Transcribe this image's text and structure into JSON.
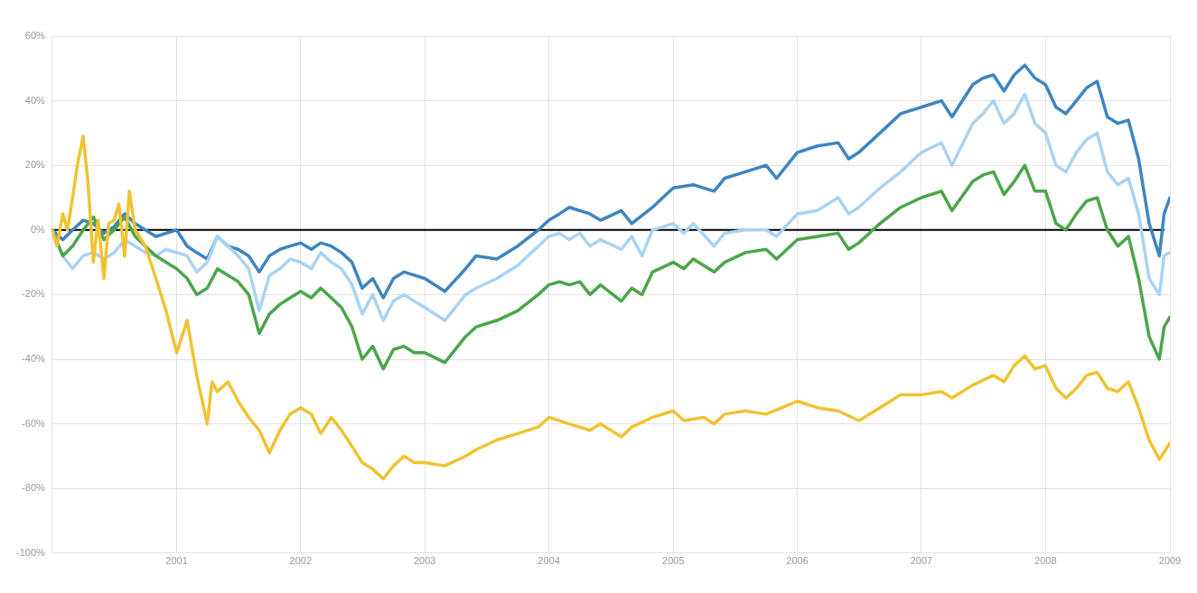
{
  "chart_data": {
    "type": "line",
    "xlim": [
      "2000-01",
      "2009-01"
    ],
    "xticks": [
      "2001",
      "2002",
      "2003",
      "2004",
      "2005",
      "2006",
      "2007",
      "2008",
      "2009"
    ],
    "ylim": [
      -100,
      60
    ],
    "yticks": [
      {
        "value": -100,
        "label": "-100%"
      },
      {
        "value": -80,
        "label": "-80%"
      },
      {
        "value": -60,
        "label": "-60%"
      },
      {
        "value": -40,
        "label": "-40%"
      },
      {
        "value": -20,
        "label": "-20%"
      },
      {
        "value": 0,
        "label": "0%"
      },
      {
        "value": 20,
        "label": "20%"
      },
      {
        "value": 40,
        "label": "40%"
      },
      {
        "value": 60,
        "label": "60%"
      }
    ],
    "grid": true,
    "legend": false,
    "marker": "none",
    "line_style": "solid",
    "ref_lines": [
      {
        "axis": "y",
        "value": 0,
        "color": "#000000"
      }
    ],
    "series": [
      {
        "color": "#f1c232",
        "x": [
          "2000-01",
          "2000-01-15",
          "2000-02",
          "2000-02-15",
          "2000-03",
          "2000-03-15",
          "2000-04",
          "2000-04-15",
          "2000-05",
          "2000-05-15",
          "2000-06",
          "2000-06-15",
          "2000-07",
          "2000-07-15",
          "2000-08",
          "2000-08-15",
          "2000-09",
          "2000-10",
          "2000-11",
          "2000-12",
          "2001-01",
          "2001-02",
          "2001-03",
          "2001-04",
          "2001-04-15",
          "2001-05",
          "2001-06",
          "2001-07",
          "2001-08",
          "2001-09",
          "2001-10",
          "2001-11",
          "2001-12",
          "2002-01",
          "2002-02",
          "2002-03",
          "2002-04",
          "2002-05",
          "2002-06",
          "2002-07",
          "2002-08",
          "2002-09",
          "2002-10",
          "2002-11",
          "2002-12",
          "2003-01",
          "2003-03",
          "2003-05",
          "2003-06",
          "2003-08",
          "2003-10",
          "2003-12",
          "2004-01",
          "2004-03",
          "2004-05",
          "2004-06",
          "2004-08",
          "2004-09",
          "2004-11",
          "2005-01",
          "2005-02",
          "2005-04",
          "2005-05",
          "2005-06",
          "2005-08",
          "2005-10",
          "2006-01",
          "2006-03",
          "2006-05",
          "2006-07",
          "2006-09",
          "2006-11",
          "2007-01",
          "2007-03",
          "2007-04",
          "2007-06",
          "2007-08",
          "2007-09",
          "2007-10",
          "2007-11",
          "2007-12",
          "2008-01",
          "2008-02",
          "2008-03",
          "2008-04",
          "2008-05",
          "2008-06",
          "2008-07",
          "2008-08",
          "2008-09",
          "2008-10",
          "2008-11",
          "2008-12",
          "2009-01"
        ],
        "values": [
          0,
          -5,
          5,
          0,
          10,
          20,
          29,
          15,
          -10,
          3,
          -15,
          2,
          3,
          8,
          -8,
          12,
          0,
          -5,
          -15,
          -25,
          -38,
          -28,
          -45,
          -60,
          -47,
          -50,
          -47,
          -53,
          -58,
          -62,
          -69,
          -62,
          -57,
          -55,
          -57,
          -63,
          -58,
          -62,
          -67,
          -72,
          -74,
          -77,
          -73,
          -70,
          -72,
          -72,
          -73,
          -70,
          -68,
          -65,
          -63,
          -61,
          -58,
          -60,
          -62,
          -60,
          -64,
          -61,
          -58,
          -56,
          -59,
          -58,
          -60,
          -57,
          -56,
          -57,
          -53,
          -55,
          -56,
          -59,
          -55,
          -51,
          -51,
          -50,
          -52,
          -48,
          -45,
          -47,
          -42,
          -39,
          -43,
          -42,
          -49,
          -52,
          -49,
          -45,
          -44,
          -49,
          -50,
          -47,
          -55,
          -65,
          -71,
          -66
        ]
      },
      {
        "color": "#4aa64a",
        "x": [
          "2000-01",
          "2000-02",
          "2000-03",
          "2000-04",
          "2000-05",
          "2000-06",
          "2000-07",
          "2000-08",
          "2000-09",
          "2000-10",
          "2000-11",
          "2000-12",
          "2001-01",
          "2001-02",
          "2001-03",
          "2001-04",
          "2001-05",
          "2001-06",
          "2001-07",
          "2001-08",
          "2001-09",
          "2001-10",
          "2001-11",
          "2001-12",
          "2002-01",
          "2002-02",
          "2002-03",
          "2002-04",
          "2002-05",
          "2002-06",
          "2002-07",
          "2002-08",
          "2002-09",
          "2002-10",
          "2002-11",
          "2002-12",
          "2003-01",
          "2003-03",
          "2003-05",
          "2003-06",
          "2003-08",
          "2003-10",
          "2003-12",
          "2004-01",
          "2004-02",
          "2004-03",
          "2004-04",
          "2004-05",
          "2004-06",
          "2004-08",
          "2004-09",
          "2004-10",
          "2004-11",
          "2005-01",
          "2005-02",
          "2005-03",
          "2005-05",
          "2005-06",
          "2005-08",
          "2005-10",
          "2005-11",
          "2006-01",
          "2006-03",
          "2006-05",
          "2006-06",
          "2006-07",
          "2006-09",
          "2006-11",
          "2007-01",
          "2007-03",
          "2007-04",
          "2007-06",
          "2007-07",
          "2007-08",
          "2007-09",
          "2007-10",
          "2007-11",
          "2007-12",
          "2008-01",
          "2008-02",
          "2008-03",
          "2008-04",
          "2008-05",
          "2008-06",
          "2008-07",
          "2008-08",
          "2008-09",
          "2008-10",
          "2008-11",
          "2008-12",
          "2008-12-15",
          "2009-01"
        ],
        "values": [
          0,
          -8,
          -5,
          0,
          4,
          -3,
          0,
          4,
          -2,
          -5,
          -8,
          -10,
          -12,
          -15,
          -20,
          -18,
          -12,
          -14,
          -16,
          -20,
          -32,
          -26,
          -23,
          -21,
          -19,
          -21,
          -18,
          -21,
          -24,
          -30,
          -40,
          -36,
          -43,
          -37,
          -36,
          -38,
          -38,
          -41,
          -33,
          -30,
          -28,
          -25,
          -20,
          -17,
          -16,
          -17,
          -16,
          -20,
          -17,
          -22,
          -18,
          -20,
          -13,
          -10,
          -12,
          -9,
          -13,
          -10,
          -7,
          -6,
          -9,
          -3,
          -2,
          -1,
          -6,
          -4,
          2,
          7,
          10,
          12,
          6,
          15,
          17,
          18,
          11,
          15,
          20,
          12,
          12,
          2,
          0,
          5,
          9,
          10,
          0,
          -5,
          -2,
          -15,
          -33,
          -40,
          -30,
          -27
        ]
      },
      {
        "color": "#aad3f3",
        "x": [
          "2000-01",
          "2000-02",
          "2000-03",
          "2000-04",
          "2000-05",
          "2000-06",
          "2000-07",
          "2000-08",
          "2000-09",
          "2000-10",
          "2000-11",
          "2000-12",
          "2001-01",
          "2001-02",
          "2001-03",
          "2001-04",
          "2001-05",
          "2001-06",
          "2001-07",
          "2001-08",
          "2001-09",
          "2001-10",
          "2001-11",
          "2001-12",
          "2002-01",
          "2002-02",
          "2002-03",
          "2002-04",
          "2002-05",
          "2002-06",
          "2002-07",
          "2002-08",
          "2002-09",
          "2002-10",
          "2002-11",
          "2002-12",
          "2003-01",
          "2003-03",
          "2003-05",
          "2003-06",
          "2003-08",
          "2003-10",
          "2003-12",
          "2004-01",
          "2004-02",
          "2004-03",
          "2004-04",
          "2004-05",
          "2004-06",
          "2004-08",
          "2004-09",
          "2004-10",
          "2004-11",
          "2005-01",
          "2005-02",
          "2005-03",
          "2005-05",
          "2005-06",
          "2005-08",
          "2005-10",
          "2005-11",
          "2006-01",
          "2006-03",
          "2006-05",
          "2006-06",
          "2006-07",
          "2006-09",
          "2006-11",
          "2007-01",
          "2007-03",
          "2007-04",
          "2007-06",
          "2007-07",
          "2007-08",
          "2007-09",
          "2007-10",
          "2007-11",
          "2007-12",
          "2008-01",
          "2008-02",
          "2008-03",
          "2008-04",
          "2008-05",
          "2008-06",
          "2008-07",
          "2008-08",
          "2008-09",
          "2008-10",
          "2008-11",
          "2008-12",
          "2008-12-15",
          "2009-01"
        ],
        "values": [
          0,
          -8,
          -12,
          -8,
          -7,
          -9,
          -7,
          -3,
          -5,
          -7,
          -8,
          -6,
          -7,
          -8,
          -13,
          -10,
          -2,
          -5,
          -8,
          -12,
          -25,
          -14,
          -12,
          -9,
          -10,
          -12,
          -7,
          -10,
          -12,
          -17,
          -26,
          -20,
          -28,
          -22,
          -20,
          -22,
          -24,
          -28,
          -20,
          -18,
          -15,
          -11,
          -5,
          -2,
          -1,
          -3,
          -1,
          -5,
          -3,
          -6,
          -2,
          -8,
          0,
          2,
          -1,
          2,
          -5,
          -1,
          0,
          0,
          -2,
          5,
          6,
          10,
          5,
          7,
          13,
          18,
          24,
          27,
          20,
          33,
          36,
          40,
          33,
          36,
          42,
          33,
          30,
          20,
          18,
          24,
          28,
          30,
          18,
          14,
          16,
          5,
          -15,
          -20,
          -8,
          -7
        ]
      },
      {
        "color": "#3d85c0",
        "x": [
          "2000-01",
          "2000-02",
          "2000-03",
          "2000-04",
          "2000-05",
          "2000-06",
          "2000-07",
          "2000-08",
          "2000-09",
          "2000-10",
          "2000-11",
          "2000-12",
          "2001-01",
          "2001-02",
          "2001-03",
          "2001-04",
          "2001-05",
          "2001-06",
          "2001-07",
          "2001-08",
          "2001-09",
          "2001-10",
          "2001-11",
          "2001-12",
          "2002-01",
          "2002-02",
          "2002-03",
          "2002-04",
          "2002-05",
          "2002-06",
          "2002-07",
          "2002-08",
          "2002-09",
          "2002-10",
          "2002-11",
          "2002-12",
          "2003-01",
          "2003-03",
          "2003-05",
          "2003-06",
          "2003-08",
          "2003-10",
          "2003-12",
          "2004-01",
          "2004-02",
          "2004-03",
          "2004-05",
          "2004-06",
          "2004-08",
          "2004-09",
          "2004-11",
          "2004-12",
          "2005-01",
          "2005-03",
          "2005-05",
          "2005-06",
          "2005-08",
          "2005-10",
          "2005-11",
          "2006-01",
          "2006-03",
          "2006-05",
          "2006-06",
          "2006-07",
          "2006-09",
          "2006-11",
          "2007-01",
          "2007-03",
          "2007-04",
          "2007-06",
          "2007-07",
          "2007-08",
          "2007-09",
          "2007-10",
          "2007-11",
          "2007-12",
          "2008-01",
          "2008-02",
          "2008-03",
          "2008-04",
          "2008-05",
          "2008-06",
          "2008-07",
          "2008-08",
          "2008-09",
          "2008-10",
          "2008-11",
          "2008-12",
          "2008-12-15",
          "2009-01"
        ],
        "values": [
          0,
          -3,
          0,
          3,
          2,
          -1,
          1,
          5,
          2,
          0,
          -2,
          -1,
          0,
          -5,
          -7,
          -9,
          -2,
          -5,
          -6,
          -8,
          -13,
          -8,
          -6,
          -5,
          -4,
          -6,
          -4,
          -5,
          -7,
          -10,
          -18,
          -15,
          -21,
          -15,
          -13,
          -14,
          -15,
          -19,
          -12,
          -8,
          -9,
          -5,
          0,
          3,
          5,
          7,
          5,
          3,
          6,
          2,
          7,
          10,
          13,
          14,
          12,
          16,
          18,
          20,
          16,
          24,
          26,
          27,
          22,
          24,
          30,
          36,
          38,
          40,
          35,
          45,
          47,
          48,
          43,
          48,
          51,
          47,
          45,
          38,
          36,
          40,
          44,
          46,
          35,
          33,
          34,
          22,
          2,
          -8,
          5,
          10
        ]
      }
    ]
  }
}
